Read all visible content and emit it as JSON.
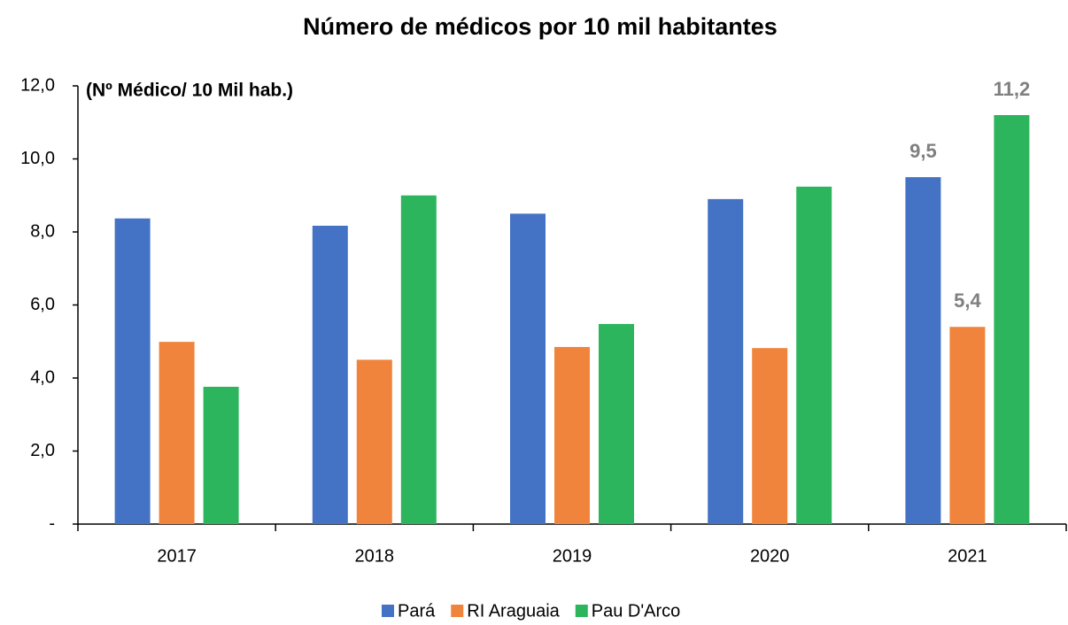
{
  "chart_data": {
    "type": "bar",
    "title": "Número de médicos por 10 mil habitantes",
    "y_label": "(Nº Médico/ 10 Mil hab.)",
    "categories": [
      "2017",
      "2018",
      "2019",
      "2020",
      "2021"
    ],
    "series": [
      {
        "name": "Pará",
        "color": "#4472c4",
        "values": [
          8.37,
          8.17,
          8.5,
          8.9,
          9.5
        ],
        "value_labels": [
          null,
          null,
          null,
          null,
          "9,5"
        ]
      },
      {
        "name": "RI Araguaia",
        "color": "#f0843c",
        "values": [
          4.99,
          4.5,
          4.85,
          4.82,
          5.4
        ],
        "value_labels": [
          null,
          null,
          null,
          null,
          "5,4"
        ]
      },
      {
        "name": "Pau D'Arco",
        "color": "#2db55d",
        "values": [
          3.76,
          9.0,
          5.48,
          9.24,
          11.2
        ],
        "value_labels": [
          null,
          null,
          null,
          null,
          "11,2"
        ]
      }
    ],
    "ylim": [
      0,
      12
    ],
    "yticks": [
      {
        "value": 0,
        "label": "-"
      },
      {
        "value": 2,
        "label": "2,0"
      },
      {
        "value": 4,
        "label": "4,0"
      },
      {
        "value": 6,
        "label": "6,0"
      },
      {
        "value": 8,
        "label": "8,0"
      },
      {
        "value": 10,
        "label": "10,0"
      },
      {
        "value": 12,
        "label": "12,0"
      }
    ],
    "grid": false,
    "legend": "bottom"
  }
}
